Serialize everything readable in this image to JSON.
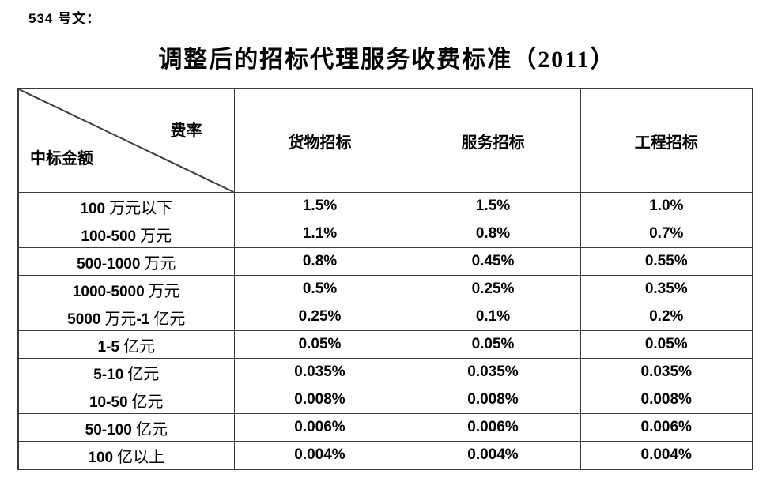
{
  "doc": {
    "ref_label": "534 号文：",
    "title": "调整后的招标代理服务收费标准（2011）"
  },
  "table": {
    "corner": {
      "rate_label": "费率",
      "amount_label": "中标金额"
    },
    "columns": [
      "货物招标",
      "服务招标",
      "工程招标"
    ],
    "rows": [
      {
        "label": "100 万元以下",
        "values": [
          "1.5%",
          "1.5%",
          "1.0%"
        ]
      },
      {
        "label": "100-500 万元",
        "values": [
          "1.1%",
          "0.8%",
          "0.7%"
        ]
      },
      {
        "label": "500-1000 万元",
        "values": [
          "0.8%",
          "0.45%",
          "0.55%"
        ]
      },
      {
        "label": "1000-5000 万元",
        "values": [
          "0.5%",
          "0.25%",
          "0.35%"
        ]
      },
      {
        "label": "5000 万元-1 亿元",
        "values": [
          "0.25%",
          "0.1%",
          "0.2%"
        ]
      },
      {
        "label": "1-5 亿元",
        "values": [
          "0.05%",
          "0.05%",
          "0.05%"
        ]
      },
      {
        "label": "5-10 亿元",
        "values": [
          "0.035%",
          "0.035%",
          "0.035%"
        ]
      },
      {
        "label": "10-50 亿元",
        "values": [
          "0.008%",
          "0.008%",
          "0.008%"
        ]
      },
      {
        "label": "50-100 亿元",
        "values": [
          "0.006%",
          "0.006%",
          "0.006%"
        ]
      },
      {
        "label": "100 亿以上",
        "values": [
          "0.004%",
          "0.004%",
          "0.004%"
        ]
      }
    ]
  },
  "colors": {
    "text": "#000000",
    "border": "#3a3a3a",
    "background": "#ffffff"
  }
}
